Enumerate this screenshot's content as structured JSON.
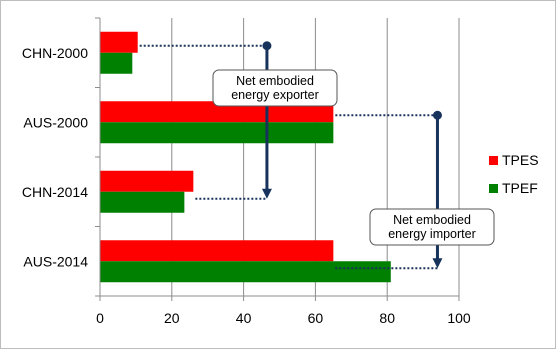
{
  "chart_data": {
    "type": "bar",
    "orientation": "horizontal",
    "categories": [
      "CHN-2000",
      "AUS-2000",
      "CHN-2014",
      "AUS-2014"
    ],
    "series": [
      {
        "name": "TPES",
        "color": "#ff0000",
        "values": [
          10.5,
          65,
          26,
          65
        ]
      },
      {
        "name": "TPEF",
        "color": "#008000",
        "values": [
          9,
          65,
          23.5,
          81
        ]
      }
    ],
    "xlim": [
      0,
      100
    ],
    "xticks": [
      "0",
      "20",
      "40",
      "60",
      "80",
      "100"
    ],
    "grid": "vertical",
    "legend": {
      "placement": "right"
    },
    "annotations": [
      {
        "text": [
          "Net embodied",
          "energy exporter"
        ],
        "from_category": "CHN-2000",
        "to_category": "CHN-2014",
        "x_value": 46.5
      },
      {
        "text": [
          "Net embodied",
          "energy importer"
        ],
        "from_category": "AUS-2000",
        "to_category": "AUS-2014",
        "x_value": 94
      }
    ]
  }
}
